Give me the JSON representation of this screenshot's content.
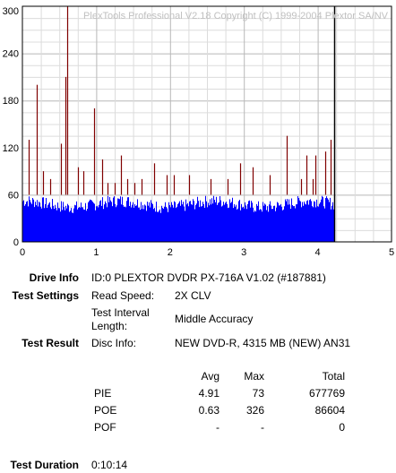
{
  "chart_data": {
    "type": "bar",
    "title": "PlexTools Professional V2.18 Copyright (C) 1999-2004 Plextor SA/NV",
    "xlabel": "",
    "ylabel": "",
    "xlim": [
      0,
      5
    ],
    "ylim": [
      0,
      300
    ],
    "x_ticks": [
      "0",
      "1",
      "2",
      "3",
      "4",
      "5"
    ],
    "y_ticks": [
      "0",
      "60",
      "120",
      "180",
      "240",
      "300"
    ],
    "grid": true,
    "disc_end_x": 4.22,
    "series": [
      {
        "name": "",
        "color": "#0000ff",
        "base_level": 40,
        "max_level": 60
      },
      {
        "name": "",
        "color": "#800000",
        "spikes": [
          [
            0.01,
            60
          ],
          [
            0.08,
            130
          ],
          [
            0.19,
            200
          ],
          [
            0.28,
            90
          ],
          [
            0.38,
            80
          ],
          [
            0.52,
            125
          ],
          [
            0.58,
            210
          ],
          [
            0.61,
            300
          ],
          [
            0.75,
            95
          ],
          [
            0.83,
            90
          ],
          [
            0.97,
            170
          ],
          [
            1.08,
            105
          ],
          [
            1.15,
            75
          ],
          [
            1.25,
            75
          ],
          [
            1.33,
            110
          ],
          [
            1.42,
            80
          ],
          [
            1.52,
            75
          ],
          [
            1.62,
            80
          ],
          [
            1.79,
            100
          ],
          [
            1.95,
            85
          ],
          [
            2.05,
            85
          ],
          [
            2.26,
            85
          ],
          [
            2.55,
            80
          ],
          [
            2.78,
            80
          ],
          [
            2.95,
            100
          ],
          [
            3.12,
            95
          ],
          [
            3.35,
            85
          ],
          [
            3.58,
            135
          ],
          [
            3.78,
            80
          ],
          [
            3.85,
            110
          ],
          [
            3.93,
            80
          ],
          [
            3.97,
            110
          ],
          [
            4.1,
            115
          ],
          [
            4.18,
            130
          ]
        ]
      }
    ]
  },
  "info": {
    "drive_label": "Drive Info",
    "drive_value": "ID:0 PLEXTOR DVDR PX-716A V1.02 (#187881)",
    "settings_label": "Test Settings",
    "read_speed_label": "Read Speed:",
    "read_speed_value": "2X CLV",
    "interval_label_1": "Test Interval",
    "interval_label_2": "Length:",
    "interval_value": "Middle Accuracy",
    "result_label": "Test Result",
    "disc_info_label": "Disc Info:",
    "disc_info_value": "NEW DVD-R, 4315 MB (NEW) AN31",
    "duration_label": "Test Duration",
    "duration_value": "0:10:14"
  },
  "stats": {
    "headers": [
      "Avg",
      "Max",
      "Total"
    ],
    "rows": [
      {
        "name": "PIE",
        "avg": "4.91",
        "max": "73",
        "total": "677769"
      },
      {
        "name": "POE",
        "avg": "0.63",
        "max": "326",
        "total": "86604"
      },
      {
        "name": "POF",
        "avg": "-",
        "max": "-",
        "total": "0"
      }
    ]
  }
}
